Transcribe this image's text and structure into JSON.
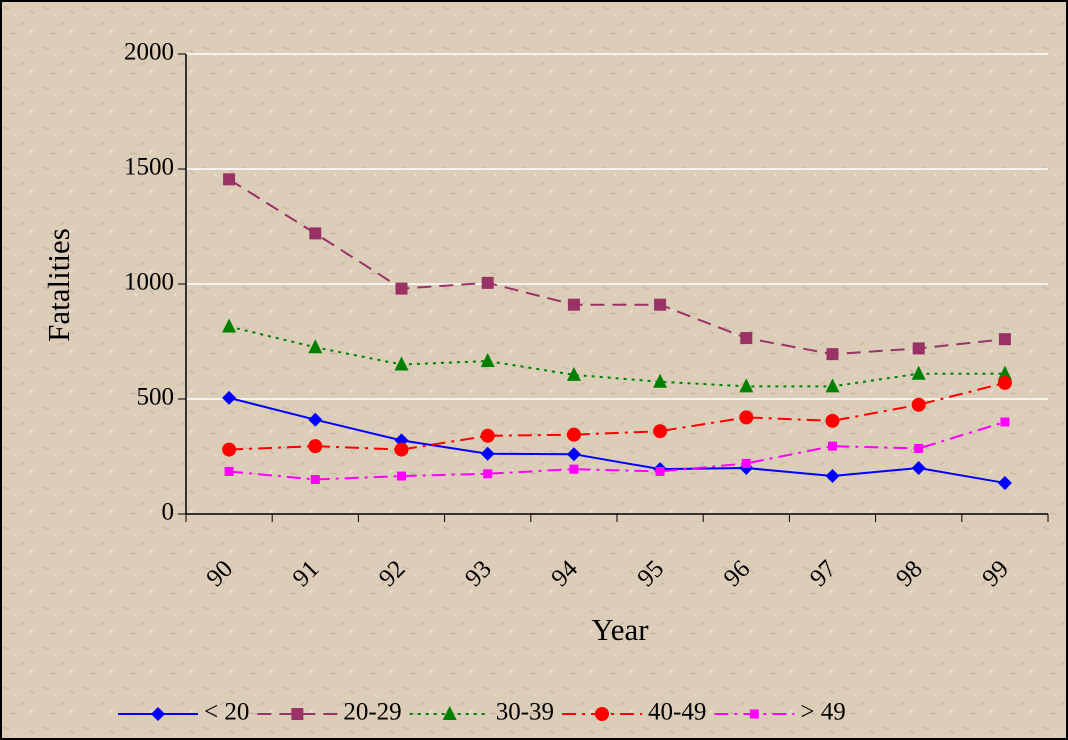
{
  "chart_data": {
    "type": "line",
    "x_label": "Year",
    "y_label": "Fatalities",
    "categories": [
      "90",
      "91",
      "92",
      "93",
      "94",
      "95",
      "96",
      "97",
      "98",
      "99"
    ],
    "ylim": [
      0,
      2000
    ],
    "yticks": [
      0,
      500,
      1000,
      1500,
      2000
    ],
    "grid": true,
    "legend": "bottom",
    "series": [
      {
        "name": "< 20",
        "color": "#0000ff",
        "marker": "diamond",
        "dash": "solid",
        "values": [
          505,
          410,
          320,
          262,
          260,
          195,
          200,
          165,
          200,
          135
        ]
      },
      {
        "name": "20-29",
        "color": "#993366",
        "marker": "square",
        "dash": "dash",
        "values": [
          1455,
          1220,
          980,
          1005,
          910,
          910,
          765,
          695,
          720,
          760
        ]
      },
      {
        "name": "30-39",
        "color": "#008000",
        "marker": "triangle",
        "dash": "dot",
        "values": [
          815,
          725,
          650,
          665,
          605,
          575,
          555,
          555,
          610,
          610
        ]
      },
      {
        "name": "40-49",
        "color": "#ff0000",
        "marker": "circle",
        "dash": "dashdot",
        "values": [
          280,
          295,
          280,
          340,
          345,
          360,
          420,
          405,
          475,
          570
        ]
      },
      {
        "name": "> 49",
        "color": "#ff00ff",
        "marker": "smallsquare",
        "dash": "dashdot",
        "values": [
          185,
          150,
          165,
          175,
          195,
          185,
          220,
          295,
          285,
          400
        ]
      }
    ]
  }
}
